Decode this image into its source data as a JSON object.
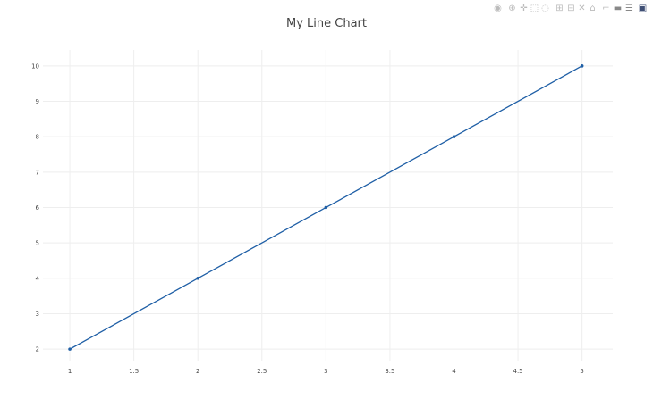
{
  "chart_data": {
    "type": "line",
    "title": "My Line Chart",
    "x": [
      1,
      2,
      3,
      4,
      5
    ],
    "series": [
      {
        "values": [
          2,
          4,
          6,
          8,
          10
        ],
        "color": "#1f5fa6",
        "mode": "lines+markers"
      }
    ],
    "xlabel": "",
    "ylabel": "",
    "xlim": [
      0.79,
      5.24
    ],
    "ylim": [
      1.65,
      10.45
    ],
    "xticks": [
      "1",
      "1.5",
      "2",
      "2.5",
      "3",
      "3.5",
      "4",
      "4.5",
      "5"
    ],
    "yticks": [
      "2",
      "3",
      "4",
      "5",
      "6",
      "7",
      "8",
      "9",
      "10"
    ],
    "grid": true
  },
  "modebar": [
    {
      "icon": "camera-icon",
      "glyph": "◉"
    },
    {
      "icon": "zoom-icon",
      "glyph": "⊕"
    },
    {
      "icon": "pan-icon",
      "glyph": "✛"
    },
    {
      "icon": "box-select-icon",
      "glyph": "⬚"
    },
    {
      "icon": "lasso-select-icon",
      "glyph": "◌"
    },
    {
      "icon": "zoom-in-icon",
      "glyph": "⊞"
    },
    {
      "icon": "zoom-out-icon",
      "glyph": "⊟"
    },
    {
      "icon": "autoscale-icon",
      "glyph": "✕"
    },
    {
      "icon": "home-icon",
      "glyph": "⌂"
    },
    {
      "icon": "spike-lines-icon",
      "glyph": "⌐"
    },
    {
      "icon": "hover-closest-icon",
      "glyph": "▬"
    },
    {
      "icon": "hover-compare-icon",
      "glyph": "☰"
    },
    {
      "icon": "plotly-logo-icon",
      "glyph": "▣"
    }
  ]
}
